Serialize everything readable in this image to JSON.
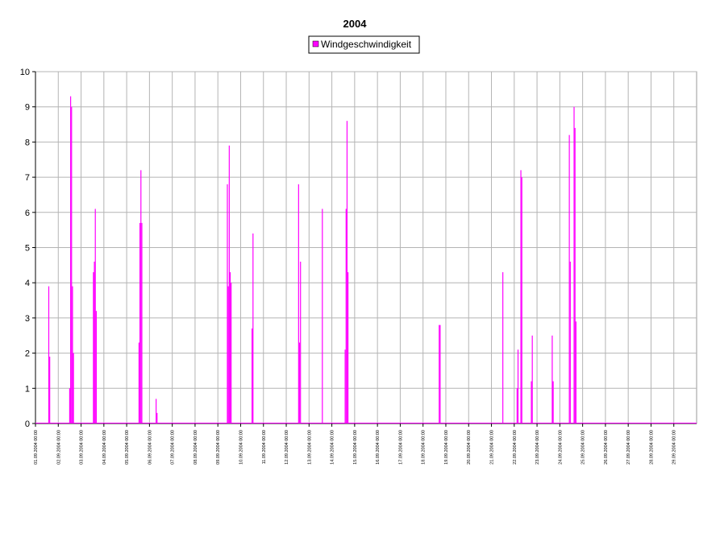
{
  "chart_data": {
    "type": "bar",
    "title": "2004",
    "series": [
      {
        "name": "Windgeschwindigkeit",
        "color": "#ff00ff",
        "x": [
          "01.09.2004 14:00",
          "01.09.2004 15:00",
          "02.09.2004 12:00",
          "02.09.2004 13:00",
          "02.09.2004 14:00",
          "02.09.2004 15:00",
          "02.09.2004 16:00",
          "03.09.2004 13:00",
          "03.09.2004 14:00",
          "03.09.2004 15:00",
          "03.09.2004 16:00",
          "05.09.2004 13:00",
          "05.09.2004 14:00",
          "05.09.2004 15:00",
          "05.09.2004 16:00",
          "06.09.2004 07:00",
          "06.09.2004 08:00",
          "09.09.2004 10:00",
          "09.09.2004 11:00",
          "09.09.2004 12:00",
          "09.09.2004 13:00",
          "09.09.2004 14:00",
          "10.09.2004 12:00",
          "10.09.2004 13:00",
          "12.09.2004 13:00",
          "12.09.2004 14:00",
          "12.09.2004 15:00",
          "13.09.2004 14:00",
          "14.09.2004 14:00",
          "14.09.2004 15:00",
          "14.09.2004 16:00",
          "14.09.2004 17:00",
          "18.09.2004 17:00",
          "18.09.2004 18:00",
          "21.09.2004 12:00",
          "22.09.2004 03:00",
          "22.09.2004 04:00",
          "22.09.2004 07:00",
          "22.09.2004 08:00",
          "22.09.2004 18:00",
          "22.09.2004 19:00",
          "23.09.2004 16:00",
          "23.09.2004 17:00",
          "24.09.2004 10:00",
          "24.09.2004 11:00",
          "24.09.2004 15:00",
          "24.09.2004 16:00",
          "24.09.2004 17:00"
        ],
        "values": [
          3.9,
          1.9,
          1.0,
          9.3,
          9.0,
          3.9,
          2.0,
          4.3,
          4.6,
          6.1,
          3.2,
          2.3,
          5.7,
          7.2,
          5.7,
          0.7,
          0.3,
          6.8,
          3.9,
          7.9,
          4.3,
          4.0,
          2.7,
          5.4,
          6.8,
          2.3,
          4.6,
          6.1,
          2.1,
          6.1,
          8.6,
          4.3,
          2.8,
          2.8,
          4.3,
          1.0,
          2.1,
          7.2,
          7.0,
          1.2,
          2.5,
          2.5,
          1.2,
          8.2,
          4.6,
          9.0,
          8.4,
          2.9
        ]
      }
    ],
    "xlim": [
      "01.09.2004 00:00",
      "30.09.2004 00:00"
    ],
    "xticks": [
      "01.09.2004 00:00",
      "02.09.2004 00:00",
      "03.09.2004 00:00",
      "04.09.2004 00:00",
      "05.09.2004 00:00",
      "06.09.2004 00:00",
      "07.09.2004 00:00",
      "08.09.2004 00:00",
      "09.09.2004 00:00",
      "10.09.2004 00:00",
      "11.09.2004 00:00",
      "12.09.2004 00:00",
      "13.09.2004 00:00",
      "14.09.2004 00:00",
      "15.09.2004 00:00",
      "16.09.2004 00:00",
      "17.09.2004 00:00",
      "18.09.2004 00:00",
      "19.09.2004 00:00",
      "20.09.2004 00:00",
      "21.09.2004 00:00",
      "22.09.2004 00:00",
      "23.09.2004 00:00",
      "24.09.2004 00:00",
      "25.09.2004 00:00",
      "26.09.2004 00:00",
      "27.09.2004 00:00",
      "28.09.2004 00:00",
      "29.09.2004 00:00"
    ],
    "ylim": [
      0,
      10
    ],
    "yticks": [
      0,
      1,
      2,
      3,
      4,
      5,
      6,
      7,
      8,
      9,
      10
    ],
    "grid": true,
    "legend": "top"
  }
}
